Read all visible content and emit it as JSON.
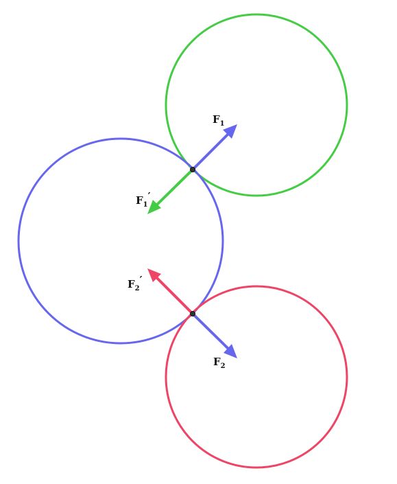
{
  "colors": {
    "blue": "#6666ee",
    "green": "#44cc44",
    "red": "#ee4466",
    "point": "#333333"
  },
  "labels": {
    "f1": {
      "main": "F",
      "sub": "1",
      "prime": ""
    },
    "f1_prime": {
      "main": "F",
      "sub": "1",
      "prime": "′"
    },
    "f2": {
      "main": "F",
      "sub": "2",
      "prime": ""
    },
    "f2_prime": {
      "main": "F",
      "sub": "2",
      "prime": "′"
    }
  }
}
